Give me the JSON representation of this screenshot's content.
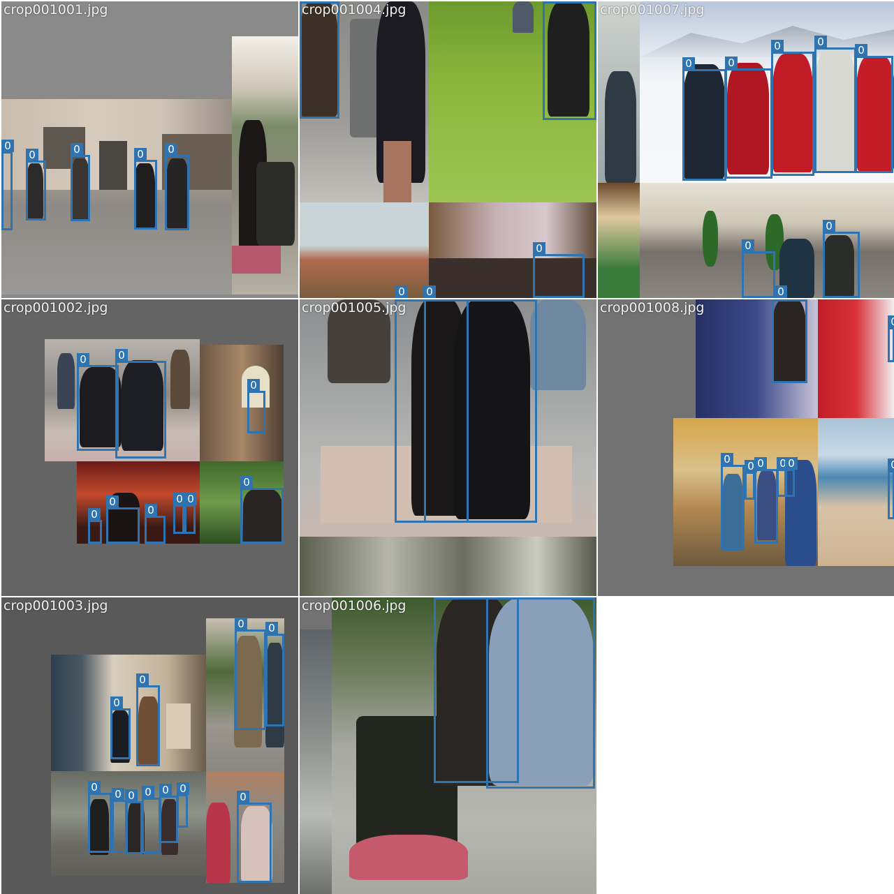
{
  "mosaic": {
    "class_label": "0",
    "box_color": "#2f74b0",
    "tiles": [
      {
        "filename": "crop001001.jpg"
      },
      {
        "filename": "crop001004.jpg"
      },
      {
        "filename": "crop001007.jpg"
      },
      {
        "filename": "crop001002.jpg"
      },
      {
        "filename": "crop001005.jpg"
      },
      {
        "filename": "crop001008.jpg"
      },
      {
        "filename": "crop001003.jpg"
      },
      {
        "filename": "crop001006.jpg"
      }
    ]
  }
}
